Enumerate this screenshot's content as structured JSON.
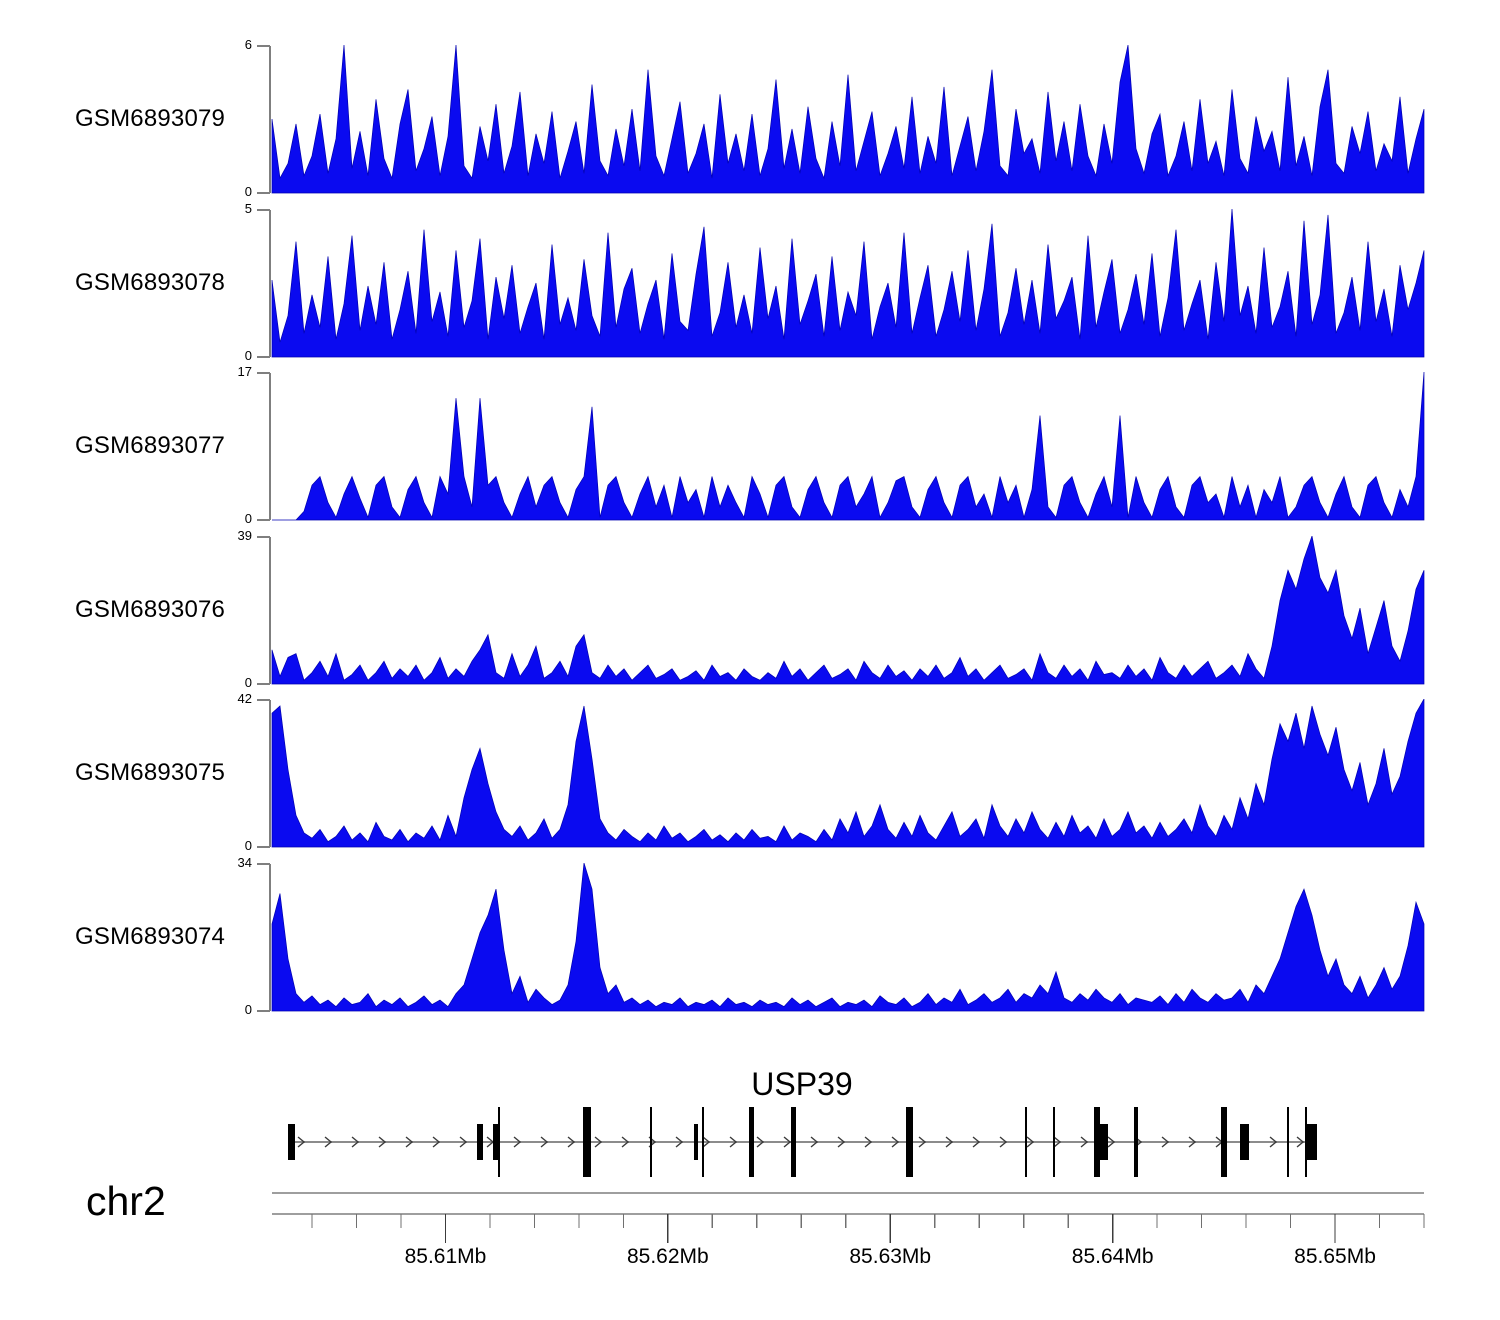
{
  "chart_data": {
    "type": "area",
    "title": "",
    "fill_color": "#0a0af0",
    "edge_color": "#0000b0",
    "axis_color": "#7f7f7f",
    "tracks": [
      {
        "name": "GSM6893079",
        "ylim": [
          0,
          6
        ],
        "ymax_label": "6",
        "ymin_label": "0",
        "values": [
          3,
          0.6,
          1.2,
          2.8,
          0.7,
          1.5,
          3.2,
          0.8,
          2.2,
          6,
          1,
          2.5,
          0.7,
          3.8,
          1.4,
          0.6,
          2.8,
          4.2,
          0.9,
          1.8,
          3.1,
          0.7,
          2.3,
          6,
          1.1,
          0.6,
          2.7,
          1.3,
          3.6,
          0.8,
          1.9,
          4.1,
          0.7,
          2.4,
          1.2,
          3.3,
          0.6,
          1.7,
          2.9,
          0.8,
          4.4,
          1.3,
          0.7,
          2.6,
          1.1,
          3.4,
          0.9,
          5,
          1.5,
          0.7,
          2.2,
          3.7,
          0.8,
          1.6,
          2.8,
          0.6,
          4,
          1.2,
          2.4,
          0.9,
          3.2,
          0.7,
          1.8,
          4.6,
          1,
          2.6,
          0.8,
          3.5,
          1.4,
          0.6,
          2.9,
          1.1,
          4.8,
          0.9,
          2.1,
          3.3,
          0.7,
          1.6,
          2.7,
          1,
          3.9,
          0.8,
          2.3,
          1.2,
          4.3,
          0.7,
          1.9,
          3.1,
          0.9,
          2.5,
          5,
          1.1,
          0.7,
          3.4,
          1.6,
          2.2,
          0.8,
          4.1,
          1.3,
          2.9,
          0.9,
          3.6,
          1.5,
          0.7,
          2.8,
          1.2,
          4.5,
          6,
          1.8,
          0.8,
          2.4,
          3.2,
          0.7,
          1.5,
          2.9,
          0.9,
          3.8,
          1.2,
          2.1,
          0.7,
          4.2,
          1.4,
          0.8,
          3.1,
          1.7,
          2.5,
          0.9,
          4.7,
          1.1,
          2.3,
          0.7,
          3.5,
          5,
          1.2,
          0.8,
          2.7,
          1.6,
          3.3,
          0.9,
          2,
          1.3,
          3.9,
          0.8,
          2.2,
          3.4
        ]
      },
      {
        "name": "GSM6893078",
        "ylim": [
          0,
          5
        ],
        "ymax_label": "5",
        "ymin_label": "0",
        "values": [
          2.6,
          0.5,
          1.4,
          3.9,
          0.8,
          2.1,
          1,
          3.4,
          0.6,
          1.8,
          4.1,
          0.9,
          2.4,
          1.1,
          3.2,
          0.6,
          1.6,
          2.9,
          0.8,
          4.3,
          1.2,
          2.2,
          0.7,
          3.6,
          1,
          1.9,
          4,
          0.6,
          2.7,
          1.3,
          3.1,
          0.8,
          1.7,
          2.5,
          0.6,
          3.8,
          1.1,
          2,
          0.9,
          3.3,
          1.4,
          0.7,
          4.2,
          1,
          2.3,
          3,
          0.8,
          1.8,
          2.6,
          0.6,
          3.5,
          1.2,
          0.9,
          2.8,
          4.4,
          0.7,
          1.5,
          3.2,
          1,
          2.1,
          0.8,
          3.7,
          1.3,
          2.4,
          0.6,
          4,
          1.1,
          1.9,
          2.8,
          0.7,
          3.4,
          0.9,
          2.2,
          1.4,
          3.9,
          0.6,
          1.7,
          2.5,
          1,
          4.2,
          0.8,
          2,
          3.1,
          0.7,
          1.6,
          2.9,
          1.2,
          3.6,
          0.9,
          2.3,
          4.5,
          0.7,
          1.5,
          3,
          1.1,
          2.6,
          0.8,
          3.8,
          1.3,
          1.9,
          2.7,
          0.6,
          4.1,
          1,
          2.2,
          3.3,
          0.8,
          1.6,
          2.8,
          1.1,
          3.5,
          0.7,
          2,
          4.3,
          0.9,
          1.8,
          2.6,
          0.6,
          3.2,
          1.2,
          5,
          1.4,
          2.4,
          0.8,
          3.7,
          1,
          1.7,
          2.9,
          0.7,
          4.6,
          1.1,
          2.1,
          4.8,
          0.8,
          1.5,
          2.7,
          0.9,
          3.9,
          1.2,
          2.3,
          0.7,
          3.1,
          1.6,
          2.5,
          3.6
        ]
      },
      {
        "name": "GSM6893077",
        "ylim": [
          0,
          17
        ],
        "ymax_label": "17",
        "ymin_label": "0",
        "values": [
          0,
          0,
          0,
          0,
          1,
          4,
          5,
          2,
          0.3,
          3,
          5,
          2.5,
          0.3,
          4,
          5,
          1.5,
          0.3,
          3.5,
          5,
          2,
          0.3,
          5,
          3,
          14,
          5,
          1.5,
          14,
          4,
          5,
          2,
          0.3,
          3,
          5,
          1.5,
          4,
          5,
          2,
          0.3,
          3.5,
          5,
          13,
          0.3,
          4,
          5,
          2,
          0.3,
          3,
          5,
          1.5,
          4,
          0.3,
          5,
          2,
          3.5,
          0.3,
          5,
          1.5,
          4,
          2,
          0.3,
          5,
          3,
          0.3,
          4,
          5,
          1.5,
          0.3,
          3.5,
          5,
          2,
          0.3,
          4,
          5,
          1.5,
          3,
          5,
          0.3,
          2,
          4.5,
          5,
          1.5,
          0.3,
          3.5,
          5,
          2,
          0.3,
          4,
          5,
          1.5,
          3,
          0.3,
          5,
          2,
          4,
          0.3,
          3.5,
          12,
          1.5,
          0.3,
          4,
          5,
          2,
          0.3,
          3,
          5,
          1.5,
          12,
          0.3,
          5,
          2,
          0.3,
          3.5,
          5,
          1.5,
          0.3,
          4,
          5,
          2,
          3,
          0.3,
          5,
          1.5,
          4,
          0.3,
          3.5,
          2,
          5,
          0.3,
          1.5,
          4,
          5,
          2,
          0.3,
          3,
          5,
          1.5,
          0.3,
          4,
          5,
          2,
          0.3,
          3.5,
          1.5,
          5,
          17
        ]
      },
      {
        "name": "GSM6893076",
        "ylim": [
          0,
          39
        ],
        "ymax_label": "39",
        "ymin_label": "0",
        "values": [
          9,
          2,
          7,
          8,
          1,
          3,
          6,
          2,
          8,
          1,
          2.5,
          5,
          1,
          3,
          6,
          1.5,
          4,
          2,
          5,
          1,
          3,
          7,
          1.5,
          4,
          2,
          6,
          9,
          13,
          3,
          1.5,
          8,
          2,
          5,
          10,
          1.5,
          3,
          6,
          2,
          10,
          13,
          3,
          1.5,
          5,
          2,
          4,
          1,
          3,
          5,
          1.5,
          2.5,
          4,
          1,
          2,
          3.5,
          1,
          5,
          2,
          3,
          1,
          4,
          2,
          1,
          3,
          1.5,
          6,
          2,
          4,
          1,
          3,
          5,
          1.5,
          2.5,
          4,
          1,
          6,
          3,
          1.5,
          5,
          2,
          3.5,
          1,
          4,
          2,
          5,
          1.5,
          3,
          7,
          2,
          4,
          1,
          3,
          5,
          1.5,
          2.5,
          4,
          1,
          8,
          3,
          1.5,
          5,
          2,
          4,
          1,
          6,
          2.5,
          3,
          1.5,
          5,
          2,
          4,
          1,
          7,
          3,
          1.5,
          5,
          2,
          4,
          6,
          1.5,
          3,
          5,
          2,
          8,
          4,
          1.5,
          10,
          22,
          30,
          25,
          33,
          39,
          28,
          24,
          30,
          18,
          12,
          20,
          8,
          15,
          22,
          10,
          6,
          14,
          25,
          30
        ]
      },
      {
        "name": "GSM6893075",
        "ylim": [
          0,
          42
        ],
        "ymax_label": "42",
        "ymin_label": "0",
        "values": [
          38,
          40,
          22,
          9,
          4,
          2.5,
          5,
          1.5,
          3,
          6,
          2,
          4,
          1.5,
          7,
          3,
          2,
          5,
          1.5,
          4,
          2.5,
          6,
          2,
          9,
          3,
          14,
          22,
          28,
          18,
          10,
          5,
          3,
          6,
          2,
          4,
          8,
          2.5,
          5,
          12,
          30,
          40,
          25,
          8,
          4,
          2,
          5,
          3,
          1.5,
          4,
          2,
          6,
          2.5,
          4,
          1.5,
          3,
          5,
          2,
          3.5,
          1.5,
          4,
          2,
          5,
          2.5,
          3,
          1.5,
          6,
          2,
          4,
          3,
          1.5,
          5,
          2,
          8,
          4,
          10,
          3,
          6,
          12,
          5,
          2.5,
          7,
          3,
          9,
          4,
          2,
          6,
          10,
          3,
          5,
          8,
          2.5,
          12,
          6,
          3,
          8,
          4,
          10,
          5,
          2.5,
          7,
          3,
          9,
          4,
          6,
          2.5,
          8,
          3,
          5,
          10,
          4,
          6,
          2.5,
          7,
          3,
          5,
          8,
          4,
          12,
          6,
          3,
          9,
          5,
          14,
          8,
          18,
          12,
          25,
          35,
          30,
          38,
          28,
          40,
          32,
          26,
          34,
          22,
          16,
          24,
          12,
          18,
          28,
          15,
          20,
          30,
          38,
          42
        ]
      },
      {
        "name": "GSM6893074",
        "ylim": [
          0,
          34
        ],
        "ymax_label": "34",
        "ymin_label": "0",
        "values": [
          20,
          27,
          12,
          4,
          2,
          3.5,
          1.5,
          2.5,
          1,
          3,
          1.5,
          2,
          4,
          1,
          2.5,
          1.5,
          3,
          1,
          2,
          3.5,
          1.5,
          2.5,
          1,
          4,
          6,
          12,
          18,
          22,
          28,
          14,
          4,
          8,
          2,
          5,
          3,
          1.5,
          2.5,
          6,
          16,
          34,
          28,
          10,
          4,
          6,
          2,
          3,
          1.5,
          2.5,
          1,
          2,
          1.5,
          3,
          1,
          2,
          1.5,
          2.5,
          1,
          3,
          1.5,
          2,
          1,
          2.5,
          1.5,
          2,
          1,
          3,
          1.5,
          2.5,
          1,
          2,
          3,
          1,
          2,
          1.5,
          2.5,
          1,
          3.5,
          2,
          1.5,
          3,
          1,
          2,
          4,
          1.5,
          3,
          2,
          5,
          1.5,
          2.5,
          4,
          2,
          3,
          5,
          2,
          4,
          3,
          6,
          4,
          9,
          3,
          2,
          4,
          2.5,
          5,
          3,
          2,
          4,
          1.5,
          3,
          2.5,
          2,
          3.5,
          1.5,
          4,
          2,
          5,
          3,
          2,
          4,
          2.5,
          3,
          5,
          2,
          6,
          4,
          8,
          12,
          18,
          24,
          28,
          22,
          14,
          8,
          12,
          6,
          4,
          8,
          3,
          6,
          10,
          5,
          8,
          15,
          25,
          20
        ]
      }
    ],
    "x_axis": {
      "chromosome_label": "chr2",
      "unit": "Mb",
      "start_mb": 85.6022,
      "end_mb": 85.654,
      "minor_tick_start_mb": 85.604,
      "minor_tick_step_mb": 0.002,
      "minor_tick_count": 26,
      "major_ticks": [
        {
          "mb": 85.61,
          "label": "85.61Mb"
        },
        {
          "mb": 85.62,
          "label": "85.62Mb"
        },
        {
          "mb": 85.63,
          "label": "85.63Mb"
        },
        {
          "mb": 85.64,
          "label": "85.64Mb"
        },
        {
          "mb": 85.65,
          "label": "85.65Mb"
        }
      ]
    },
    "gene_track": {
      "label": "USP39",
      "strand": "forward",
      "gene_start_mb": 85.60292,
      "gene_end_mb": 85.64919,
      "exons": [
        {
          "s": 85.60292,
          "e": 85.60323,
          "t": "cds"
        },
        {
          "s": 85.61142,
          "e": 85.61169,
          "t": "cds"
        },
        {
          "s": 85.61214,
          "e": 85.61245,
          "t": "cds"
        },
        {
          "s": 85.61236,
          "e": 85.61245,
          "t": "tall_thin"
        },
        {
          "s": 85.61618,
          "e": 85.61654,
          "t": "tall_thick"
        },
        {
          "s": 85.6192,
          "e": 85.61929,
          "t": "tall_thin"
        },
        {
          "s": 85.62118,
          "e": 85.62136,
          "t": "cds"
        },
        {
          "s": 85.62154,
          "e": 85.62163,
          "t": "tall_thin"
        },
        {
          "s": 85.62365,
          "e": 85.62387,
          "t": "tall_thick"
        },
        {
          "s": 85.62554,
          "e": 85.62576,
          "t": "tall_thick"
        },
        {
          "s": 85.63071,
          "e": 85.63102,
          "t": "tall_thick"
        },
        {
          "s": 85.63606,
          "e": 85.63615,
          "t": "tall_thin"
        },
        {
          "s": 85.63732,
          "e": 85.63741,
          "t": "tall_thin"
        },
        {
          "s": 85.63916,
          "e": 85.63943,
          "t": "tall_thick"
        },
        {
          "s": 85.63943,
          "e": 85.63979,
          "t": "cds"
        },
        {
          "s": 85.64096,
          "e": 85.64114,
          "t": "tall_thin"
        },
        {
          "s": 85.64487,
          "e": 85.64514,
          "t": "tall_thick"
        },
        {
          "s": 85.64573,
          "e": 85.64613,
          "t": "cds"
        },
        {
          "s": 85.64784,
          "e": 85.64793,
          "t": "tall_thin"
        },
        {
          "s": 85.64865,
          "e": 85.64874,
          "t": "tall_thin"
        },
        {
          "s": 85.64874,
          "e": 85.64919,
          "t": "cds"
        }
      ]
    }
  }
}
